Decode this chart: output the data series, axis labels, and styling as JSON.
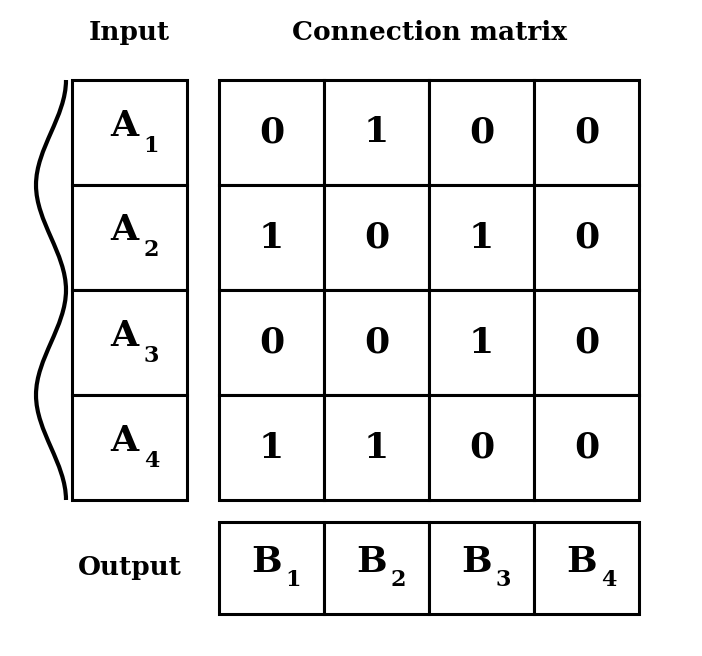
{
  "title_input": "Input",
  "title_connection": "Connection matrix",
  "label_output": "Output",
  "input_labels_base": [
    "A",
    "A",
    "A",
    "A"
  ],
  "output_labels_base": [
    "B",
    "B",
    "B",
    "B"
  ],
  "input_subscripts": [
    "1",
    "2",
    "3",
    "4"
  ],
  "output_subscripts": [
    "1",
    "2",
    "3",
    "4"
  ],
  "matrix": [
    [
      0,
      1,
      0,
      0
    ],
    [
      1,
      0,
      1,
      0
    ],
    [
      0,
      0,
      1,
      0
    ],
    [
      1,
      1,
      0,
      0
    ]
  ],
  "bg_color": "#ffffff",
  "text_color": "#000000",
  "line_color": "#000000",
  "fig_w": 7.02,
  "fig_h": 6.56,
  "dpi": 100
}
